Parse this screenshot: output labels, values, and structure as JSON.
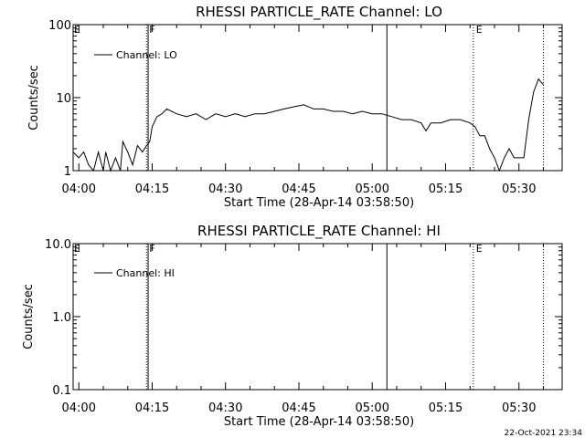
{
  "chart_data": [
    {
      "type": "line",
      "title": "RHESSI PARTICLE_RATE Channel: LO",
      "xlabel": "Start Time (28-Apr-14 03:58:50)",
      "ylabel": "Counts/sec",
      "yscale": "log",
      "xlim": [
        "03:58:50",
        "05:38:50"
      ],
      "ylim": [
        1,
        100
      ],
      "xticks": [
        "04:00",
        "04:15",
        "04:30",
        "04:45",
        "05:00",
        "05:15",
        "05:30"
      ],
      "yticks": [
        "1",
        "10",
        "100"
      ],
      "grid": false,
      "legend": {
        "position": "top-left",
        "entries": [
          "Channel: LO"
        ]
      },
      "markers": [
        {
          "label": "F",
          "time": "04:13:50",
          "style": "dotted"
        },
        {
          "label": "",
          "time": "04:14:10",
          "style": "solid"
        },
        {
          "label": "",
          "time": "05:03:00",
          "style": "solid"
        },
        {
          "label": "E",
          "time": "05:20:40",
          "style": "dotted"
        },
        {
          "label": "",
          "time": "05:35:00",
          "style": "dotted"
        }
      ],
      "edge_labels": {
        "left": "E"
      },
      "series": [
        {
          "name": "Channel: LO",
          "points": [
            [
              "03:58:50",
              1.8
            ],
            [
              "04:00:00",
              1.5
            ],
            [
              "04:01:00",
              1.8
            ],
            [
              "04:02:00",
              1.2
            ],
            [
              "04:03:00",
              1.0
            ],
            [
              "04:04:00",
              1.8
            ],
            [
              "04:05:00",
              1.0
            ],
            [
              "04:05:30",
              1.8
            ],
            [
              "04:06:30",
              1.0
            ],
            [
              "04:07:30",
              1.5
            ],
            [
              "04:08:30",
              1.0
            ],
            [
              "04:09:00",
              2.5
            ],
            [
              "04:10:00",
              1.8
            ],
            [
              "04:11:00",
              1.2
            ],
            [
              "04:12:00",
              2.2
            ],
            [
              "04:13:00",
              1.8
            ],
            [
              "04:13:50",
              2.2
            ],
            [
              "04:14:30",
              2.5
            ],
            [
              "04:15:00",
              4.0
            ],
            [
              "04:16:00",
              5.5
            ],
            [
              "04:17:00",
              6.0
            ],
            [
              "04:18:00",
              7.0
            ],
            [
              "04:20:00",
              6.0
            ],
            [
              "04:22:00",
              5.5
            ],
            [
              "04:24:00",
              6.0
            ],
            [
              "04:26:00",
              5.0
            ],
            [
              "04:28:00",
              6.0
            ],
            [
              "04:30:00",
              5.5
            ],
            [
              "04:32:00",
              6.0
            ],
            [
              "04:34:00",
              5.5
            ],
            [
              "04:36:00",
              6.0
            ],
            [
              "04:38:00",
              6.0
            ],
            [
              "04:40:00",
              6.5
            ],
            [
              "04:42:00",
              7.0
            ],
            [
              "04:44:00",
              7.5
            ],
            [
              "04:46:00",
              8.0
            ],
            [
              "04:48:00",
              7.0
            ],
            [
              "04:50:00",
              7.0
            ],
            [
              "04:52:00",
              6.5
            ],
            [
              "04:54:00",
              6.5
            ],
            [
              "04:56:00",
              6.0
            ],
            [
              "04:58:00",
              6.5
            ],
            [
              "05:00:00",
              6.0
            ],
            [
              "05:02:00",
              6.0
            ],
            [
              "05:04:00",
              5.5
            ],
            [
              "05:06:00",
              5.0
            ],
            [
              "05:08:00",
              5.0
            ],
            [
              "05:10:00",
              4.5
            ],
            [
              "05:11:00",
              3.5
            ],
            [
              "05:12:00",
              4.5
            ],
            [
              "05:14:00",
              4.5
            ],
            [
              "05:16:00",
              5.0
            ],
            [
              "05:18:00",
              5.0
            ],
            [
              "05:20:00",
              4.5
            ],
            [
              "05:21:00",
              4.0
            ],
            [
              "05:22:00",
              3.0
            ],
            [
              "05:23:00",
              3.0
            ],
            [
              "05:24:00",
              2.0
            ],
            [
              "05:25:00",
              1.5
            ],
            [
              "05:26:00",
              1.0
            ],
            [
              "05:27:00",
              1.5
            ],
            [
              "05:28:00",
              2.0
            ],
            [
              "05:29:00",
              1.5
            ],
            [
              "05:30:00",
              1.5
            ],
            [
              "05:31:00",
              1.5
            ],
            [
              "05:32:00",
              5.0
            ],
            [
              "05:33:00",
              12.0
            ],
            [
              "05:34:00",
              18.0
            ],
            [
              "05:35:00",
              15.0
            ]
          ]
        }
      ]
    },
    {
      "type": "line",
      "title": "RHESSI PARTICLE_RATE Channel: HI",
      "xlabel": "Start Time (28-Apr-14 03:58:50)",
      "ylabel": "Counts/sec",
      "yscale": "log",
      "xlim": [
        "03:58:50",
        "05:38:50"
      ],
      "ylim": [
        0.1,
        10.0
      ],
      "xticks": [
        "04:00",
        "04:15",
        "04:30",
        "04:45",
        "05:00",
        "05:15",
        "05:30"
      ],
      "yticks": [
        "0.1",
        "1.0",
        "10.0"
      ],
      "grid": false,
      "legend": {
        "position": "top-left",
        "entries": [
          "Channel: HI"
        ]
      },
      "markers": [
        {
          "label": "F",
          "time": "04:13:50",
          "style": "dotted"
        },
        {
          "label": "",
          "time": "04:14:10",
          "style": "solid"
        },
        {
          "label": "",
          "time": "05:03:00",
          "style": "solid"
        },
        {
          "label": "E",
          "time": "05:20:40",
          "style": "dotted"
        },
        {
          "label": "",
          "time": "05:35:00",
          "style": "dotted"
        }
      ],
      "edge_labels": {
        "left": "E"
      },
      "series": [
        {
          "name": "Channel: HI",
          "points": []
        }
      ]
    }
  ],
  "footer": {
    "timestamp": "22-Oct-2021 23:34"
  }
}
